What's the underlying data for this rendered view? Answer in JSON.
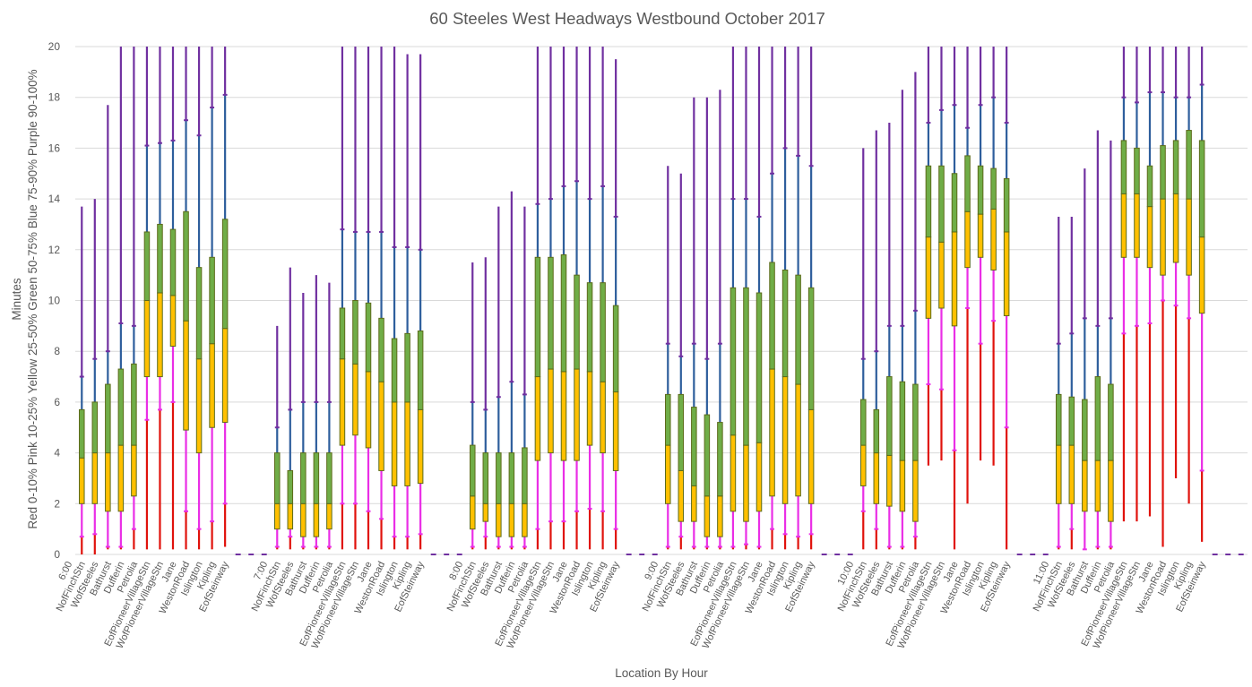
{
  "chart_data": {
    "type": "box-whisker",
    "title": "60 Steeles West Headways Westbound October 2017",
    "xlabel": "Location By Hour",
    "ylabel": "Red 0-10%  Pink 10-25%  Yellow 25-50%  Green 50-75%  Blue 75-90%  Purple 90-100%",
    "ylabel_units": "Minutes",
    "ylim": [
      0,
      20
    ],
    "yticks": [
      0,
      2,
      4,
      6,
      8,
      10,
      12,
      14,
      16,
      18,
      20
    ],
    "grid": true,
    "legend": "none",
    "colors": {
      "p0_10": "#e0120c",
      "p10_25": "#ea2ee6",
      "p25_50": "#ffc000",
      "p50_75": "#70ad47",
      "p75_90": "#2e5e9c",
      "p90_100": "#7030a0",
      "box_border": "#5c6b1a"
    },
    "series_fields": [
      "min",
      "p10",
      "p25",
      "p50",
      "p75",
      "p90",
      "max"
    ],
    "groups": [
      {
        "hour": "6:00",
        "stops": [
          {
            "label": "NofFinchStn",
            "min": 0,
            "p10": 0.7,
            "p25": 2.0,
            "p50": 3.8,
            "p75": 5.7,
            "p90": 7.0,
            "max": 13.7
          },
          {
            "label": "WofSteeles",
            "min": 0,
            "p10": 0.8,
            "p25": 2.0,
            "p50": 4.0,
            "p75": 6.0,
            "p90": 7.7,
            "max": 14.0
          },
          {
            "label": "Bathurst",
            "min": 0.2,
            "p10": 0.3,
            "p25": 1.7,
            "p50": 4.0,
            "p75": 6.7,
            "p90": 8.0,
            "max": 17.7
          },
          {
            "label": "Dufferin",
            "min": 0.2,
            "p10": 0.3,
            "p25": 1.7,
            "p50": 4.3,
            "p75": 7.3,
            "p90": 9.1,
            "max": 20.0
          },
          {
            "label": "Petrolia",
            "min": 0.2,
            "p10": 1.0,
            "p25": 2.3,
            "p50": 4.3,
            "p75": 7.5,
            "p90": 9.0,
            "max": 20.0
          },
          {
            "label": "EofPioneerVillageStn",
            "min": 0.2,
            "p10": 5.3,
            "p25": 7.0,
            "p50": 10.0,
            "p75": 12.7,
            "p90": 16.1,
            "max": 20.0
          },
          {
            "label": "WofPioneerVillageStn",
            "min": 0.2,
            "p10": 5.7,
            "p25": 7.0,
            "p50": 10.3,
            "p75": 13.0,
            "p90": 16.2,
            "max": 20.0
          },
          {
            "label": "Jane",
            "min": 0.2,
            "p10": 6.0,
            "p25": 8.2,
            "p50": 10.2,
            "p75": 12.8,
            "p90": 16.3,
            "max": 20.0
          },
          {
            "label": "WestonRoad",
            "min": 0.2,
            "p10": 1.7,
            "p25": 4.9,
            "p50": 9.2,
            "p75": 13.5,
            "p90": 17.1,
            "max": 20.0
          },
          {
            "label": "Islington",
            "min": 0.2,
            "p10": 1.0,
            "p25": 4.0,
            "p50": 7.7,
            "p75": 11.3,
            "p90": 16.5,
            "max": 20.0
          },
          {
            "label": "Kipling",
            "min": 0.2,
            "p10": 1.3,
            "p25": 5.0,
            "p50": 8.3,
            "p75": 11.7,
            "p90": 17.6,
            "max": 20.0
          },
          {
            "label": "EofSteinway",
            "min": 0.3,
            "p10": 2.0,
            "p25": 5.2,
            "p50": 8.9,
            "p75": 13.2,
            "p90": 18.1,
            "max": 20.0
          }
        ]
      },
      {
        "hour": "7:00",
        "stops": [
          {
            "label": "NofFinchStn",
            "min": 0.2,
            "p10": 0.3,
            "p25": 1.0,
            "p50": 2.0,
            "p75": 4.0,
            "p90": 5.0,
            "max": 9.0
          },
          {
            "label": "WofSteeles",
            "min": 0.2,
            "p10": 0.7,
            "p25": 1.0,
            "p50": 2.0,
            "p75": 3.3,
            "p90": 5.7,
            "max": 11.3
          },
          {
            "label": "Bathurst",
            "min": 0.2,
            "p10": 0.3,
            "p25": 0.7,
            "p50": 2.0,
            "p75": 4.0,
            "p90": 6.0,
            "max": 10.3
          },
          {
            "label": "Dufferin",
            "min": 0.2,
            "p10": 0.3,
            "p25": 0.7,
            "p50": 2.0,
            "p75": 4.0,
            "p90": 6.0,
            "max": 11.0
          },
          {
            "label": "Petrolia",
            "min": 0.2,
            "p10": 0.3,
            "p25": 1.0,
            "p50": 2.0,
            "p75": 4.0,
            "p90": 6.0,
            "max": 10.7
          },
          {
            "label": "EofPioneerVillageStn",
            "min": 0.2,
            "p10": 2.0,
            "p25": 4.3,
            "p50": 7.7,
            "p75": 9.7,
            "p90": 12.8,
            "max": 20.0
          },
          {
            "label": "WofPioneerVillageStn",
            "min": 0.2,
            "p10": 2.0,
            "p25": 4.7,
            "p50": 7.5,
            "p75": 10.0,
            "p90": 12.7,
            "max": 20.0
          },
          {
            "label": "Jane",
            "min": 0.2,
            "p10": 1.7,
            "p25": 4.2,
            "p50": 7.2,
            "p75": 9.9,
            "p90": 12.7,
            "max": 20.0
          },
          {
            "label": "WestonRoad",
            "min": 0.2,
            "p10": 1.4,
            "p25": 3.3,
            "p50": 6.8,
            "p75": 9.3,
            "p90": 12.7,
            "max": 20.0
          },
          {
            "label": "Islington",
            "min": 0.2,
            "p10": 0.7,
            "p25": 2.7,
            "p50": 6.0,
            "p75": 8.5,
            "p90": 12.1,
            "max": 20.0
          },
          {
            "label": "Kipling",
            "min": 0.2,
            "p10": 0.7,
            "p25": 2.7,
            "p50": 6.0,
            "p75": 8.7,
            "p90": 12.1,
            "max": 19.7
          },
          {
            "label": "EofSteinway",
            "min": 0.2,
            "p10": 0.8,
            "p25": 2.8,
            "p50": 5.7,
            "p75": 8.8,
            "p90": 12.0,
            "max": 19.7
          }
        ]
      },
      {
        "hour": "8:00",
        "stops": [
          {
            "label": "NofFinchStn",
            "min": 0.2,
            "p10": 0.3,
            "p25": 1.0,
            "p50": 2.3,
            "p75": 4.3,
            "p90": 6.0,
            "max": 11.5
          },
          {
            "label": "WofSteeles",
            "min": 0.2,
            "p10": 0.7,
            "p25": 1.3,
            "p50": 2.0,
            "p75": 4.0,
            "p90": 5.7,
            "max": 11.7
          },
          {
            "label": "Bathurst",
            "min": 0.2,
            "p10": 0.3,
            "p25": 0.7,
            "p50": 2.0,
            "p75": 4.0,
            "p90": 6.2,
            "max": 13.7
          },
          {
            "label": "Dufferin",
            "min": 0.2,
            "p10": 0.3,
            "p25": 0.7,
            "p50": 2.0,
            "p75": 4.0,
            "p90": 6.8,
            "max": 14.3
          },
          {
            "label": "Petrolia",
            "min": 0.2,
            "p10": 0.3,
            "p25": 0.7,
            "p50": 2.0,
            "p75": 4.2,
            "p90": 6.3,
            "max": 13.7
          },
          {
            "label": "EofPioneerVillageStn",
            "min": 0.2,
            "p10": 1.0,
            "p25": 3.7,
            "p50": 7.0,
            "p75": 11.7,
            "p90": 13.8,
            "max": 20.0
          },
          {
            "label": "WofPioneerVillageStn",
            "min": 0.2,
            "p10": 1.3,
            "p25": 4.0,
            "p50": 7.3,
            "p75": 11.7,
            "p90": 14.0,
            "max": 20.0
          },
          {
            "label": "Jane",
            "min": 0.2,
            "p10": 1.3,
            "p25": 3.7,
            "p50": 7.2,
            "p75": 11.8,
            "p90": 14.5,
            "max": 20.0
          },
          {
            "label": "WestonRoad",
            "min": 0.2,
            "p10": 1.7,
            "p25": 3.7,
            "p50": 7.3,
            "p75": 11.0,
            "p90": 14.7,
            "max": 20.0
          },
          {
            "label": "Islington",
            "min": 0.2,
            "p10": 1.8,
            "p25": 4.3,
            "p50": 7.2,
            "p75": 10.7,
            "p90": 14.0,
            "max": 20.0
          },
          {
            "label": "Kipling",
            "min": 0.2,
            "p10": 1.7,
            "p25": 4.0,
            "p50": 6.8,
            "p75": 10.7,
            "p90": 14.5,
            "max": 20.0
          },
          {
            "label": "EofSteinway",
            "min": 0.2,
            "p10": 1.0,
            "p25": 3.3,
            "p50": 6.4,
            "p75": 9.8,
            "p90": 13.3,
            "max": 19.5
          }
        ]
      },
      {
        "hour": "9:00",
        "stops": [
          {
            "label": "NofFinchStn",
            "min": 0.2,
            "p10": 0.3,
            "p25": 2.0,
            "p50": 4.3,
            "p75": 6.3,
            "p90": 8.3,
            "max": 15.3
          },
          {
            "label": "WofSteeles",
            "min": 0.2,
            "p10": 0.7,
            "p25": 1.3,
            "p50": 3.3,
            "p75": 6.3,
            "p90": 7.8,
            "max": 15.0
          },
          {
            "label": "Bathurst",
            "min": 0.2,
            "p10": 0.3,
            "p25": 1.3,
            "p50": 2.7,
            "p75": 5.8,
            "p90": 8.3,
            "max": 18.0
          },
          {
            "label": "Dufferin",
            "min": 0.2,
            "p10": 0.3,
            "p25": 0.7,
            "p50": 2.3,
            "p75": 5.5,
            "p90": 7.7,
            "max": 18.0
          },
          {
            "label": "Petrolia",
            "min": 0.2,
            "p10": 0.3,
            "p25": 0.7,
            "p50": 2.3,
            "p75": 5.2,
            "p90": 8.3,
            "max": 18.3
          },
          {
            "label": "EofPioneerVillageStn",
            "min": 0.2,
            "p10": 0.3,
            "p25": 1.7,
            "p50": 4.7,
            "p75": 10.5,
            "p90": 14.0,
            "max": 20.0
          },
          {
            "label": "WofPioneerVillageStn",
            "min": 0.2,
            "p10": 0.4,
            "p25": 1.3,
            "p50": 4.3,
            "p75": 10.5,
            "p90": 14.0,
            "max": 20.0
          },
          {
            "label": "Jane",
            "min": 0.2,
            "p10": 0.3,
            "p25": 1.7,
            "p50": 4.4,
            "p75": 10.3,
            "p90": 13.3,
            "max": 20.0
          },
          {
            "label": "WestonRoad",
            "min": 0.2,
            "p10": 1.0,
            "p25": 2.3,
            "p50": 7.3,
            "p75": 11.5,
            "p90": 15.0,
            "max": 20.0
          },
          {
            "label": "Islington",
            "min": 0.2,
            "p10": 0.8,
            "p25": 2.0,
            "p50": 7.0,
            "p75": 11.2,
            "p90": 16.0,
            "max": 20.0
          },
          {
            "label": "Kipling",
            "min": 0.2,
            "p10": 0.7,
            "p25": 2.3,
            "p50": 6.7,
            "p75": 11.0,
            "p90": 15.7,
            "max": 20.0
          },
          {
            "label": "EofSteinway",
            "min": 0.2,
            "p10": 0.8,
            "p25": 2.0,
            "p50": 5.7,
            "p75": 10.5,
            "p90": 15.3,
            "max": 20.0
          }
        ]
      },
      {
        "hour": "10:00",
        "stops": [
          {
            "label": "NofFinchStn",
            "min": 0.2,
            "p10": 1.7,
            "p25": 2.7,
            "p50": 4.3,
            "p75": 6.1,
            "p90": 7.7,
            "max": 16.0
          },
          {
            "label": "WofSteeles",
            "min": 0.2,
            "p10": 1.0,
            "p25": 2.0,
            "p50": 4.0,
            "p75": 5.7,
            "p90": 8.0,
            "max": 16.7
          },
          {
            "label": "Bathurst",
            "min": 0.2,
            "p10": 0.3,
            "p25": 1.9,
            "p50": 3.9,
            "p75": 7.0,
            "p90": 9.0,
            "max": 17.0
          },
          {
            "label": "Dufferin",
            "min": 0.2,
            "p10": 0.3,
            "p25": 1.7,
            "p50": 3.7,
            "p75": 6.8,
            "p90": 9.0,
            "max": 18.3
          },
          {
            "label": "Petrolia",
            "min": 0.2,
            "p10": 0.7,
            "p25": 1.3,
            "p50": 3.7,
            "p75": 6.7,
            "p90": 9.6,
            "max": 19.0
          },
          {
            "label": "EofPioneerVillageStn",
            "min": 3.5,
            "p10": 6.7,
            "p25": 9.3,
            "p50": 12.5,
            "p75": 15.3,
            "p90": 17.0,
            "max": 20.0
          },
          {
            "label": "WofPioneerVillageStn",
            "min": 3.7,
            "p10": 6.5,
            "p25": 9.7,
            "p50": 12.3,
            "p75": 15.3,
            "p90": 17.5,
            "max": 20.0
          },
          {
            "label": "Jane",
            "min": 0.2,
            "p10": 4.1,
            "p25": 9.0,
            "p50": 12.7,
            "p75": 15.0,
            "p90": 17.7,
            "max": 20.0
          },
          {
            "label": "WestonRoad",
            "min": 2.0,
            "p10": 9.7,
            "p25": 11.3,
            "p50": 13.5,
            "p75": 15.7,
            "p90": 16.8,
            "max": 20.0
          },
          {
            "label": "Islington",
            "min": 3.7,
            "p10": 8.3,
            "p25": 11.7,
            "p50": 13.4,
            "p75": 15.3,
            "p90": 17.7,
            "max": 20.0
          },
          {
            "label": "Kipling",
            "min": 3.5,
            "p10": 9.2,
            "p25": 11.2,
            "p50": 13.6,
            "p75": 15.2,
            "p90": 18.0,
            "max": 20.0
          },
          {
            "label": "EofSteinway",
            "min": 0.2,
            "p10": 5.0,
            "p25": 9.4,
            "p50": 12.7,
            "p75": 14.8,
            "p90": 17.0,
            "max": 20.0
          }
        ]
      },
      {
        "hour": "11:00",
        "stops": [
          {
            "label": "NofFinchStn",
            "min": 0.2,
            "p10": 0.3,
            "p25": 2.0,
            "p50": 4.3,
            "p75": 6.3,
            "p90": 8.3,
            "max": 13.3
          },
          {
            "label": "WofSteeles",
            "min": 0.2,
            "p10": 1.0,
            "p25": 2.0,
            "p50": 4.3,
            "p75": 6.2,
            "p90": 8.7,
            "max": 13.3
          },
          {
            "label": "Bathurst",
            "min": 0.2,
            "p10": 0.2,
            "p25": 1.7,
            "p50": 3.7,
            "p75": 6.1,
            "p90": 9.3,
            "max": 15.2
          },
          {
            "label": "Dufferin",
            "min": 0.2,
            "p10": 0.3,
            "p25": 1.7,
            "p50": 3.7,
            "p75": 7.0,
            "p90": 9.0,
            "max": 16.7
          },
          {
            "label": "Petrolia",
            "min": 0.2,
            "p10": 0.3,
            "p25": 1.3,
            "p50": 3.7,
            "p75": 6.7,
            "p90": 9.3,
            "max": 16.3
          },
          {
            "label": "EofPioneerVillageStn",
            "min": 1.3,
            "p10": 8.7,
            "p25": 11.7,
            "p50": 14.2,
            "p75": 16.3,
            "p90": 18.0,
            "max": 20.0
          },
          {
            "label": "WofPioneerVillageStn",
            "min": 1.3,
            "p10": 9.0,
            "p25": 11.7,
            "p50": 14.2,
            "p75": 16.0,
            "p90": 17.8,
            "max": 20.0
          },
          {
            "label": "Jane",
            "min": 1.5,
            "p10": 9.1,
            "p25": 11.3,
            "p50": 13.7,
            "p75": 15.3,
            "p90": 18.2,
            "max": 20.0
          },
          {
            "label": "WestonRoad",
            "min": 0.3,
            "p10": 10.0,
            "p25": 11.0,
            "p50": 14.0,
            "p75": 16.1,
            "p90": 18.2,
            "max": 20.0
          },
          {
            "label": "Islington",
            "min": 3.0,
            "p10": 9.8,
            "p25": 11.5,
            "p50": 14.2,
            "p75": 16.3,
            "p90": 18.0,
            "max": 20.0
          },
          {
            "label": "Kipling",
            "min": 2.0,
            "p10": 9.3,
            "p25": 11.0,
            "p50": 14.0,
            "p75": 16.7,
            "p90": 18.0,
            "max": 20.0
          },
          {
            "label": "EofSteinway",
            "min": 0.5,
            "p10": 3.3,
            "p25": 9.5,
            "p50": 12.5,
            "p75": 16.3,
            "p90": 18.5,
            "max": 20.0
          }
        ]
      }
    ]
  }
}
